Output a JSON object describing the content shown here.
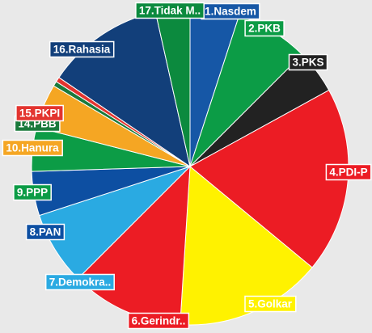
{
  "chart_data": {
    "type": "pie",
    "title": "",
    "slices": [
      {
        "label": "1.Nasdem",
        "value": 5.0,
        "color": "#1657a6"
      },
      {
        "label": "2.PKB",
        "value": 7.5,
        "color": "#0c9c46"
      },
      {
        "label": "3.PKS",
        "value": 4.5,
        "color": "#222222"
      },
      {
        "label": "4.PDI-P",
        "value": 19.0,
        "color": "#ec1c24"
      },
      {
        "label": "5.Golkar",
        "value": 15.0,
        "color": "#fff200"
      },
      {
        "label": "6.Gerindr..",
        "value": 11.5,
        "color": "#ec1c24"
      },
      {
        "label": "7.Demokra..",
        "value": 7.5,
        "color": "#2aaae2"
      },
      {
        "label": "8.PAN",
        "value": 4.5,
        "color": "#0d4fa2"
      },
      {
        "label": "9.PPP",
        "value": 4.5,
        "color": "#0c9c46"
      },
      {
        "label": "10.Hanura",
        "value": 4.5,
        "color": "#f5a623"
      },
      {
        "label": "14.PBB",
        "value": 0.5,
        "color": "#1a7a3c"
      },
      {
        "label": "15.PKPI",
        "value": 0.5,
        "color": "#e3342f"
      },
      {
        "label": "16.Rahasia",
        "value": 12.0,
        "color": "#123f7a"
      },
      {
        "label": "17.Tidak M..",
        "value": 3.5,
        "color": "#0c8a3e"
      }
    ],
    "legend": "none"
  }
}
